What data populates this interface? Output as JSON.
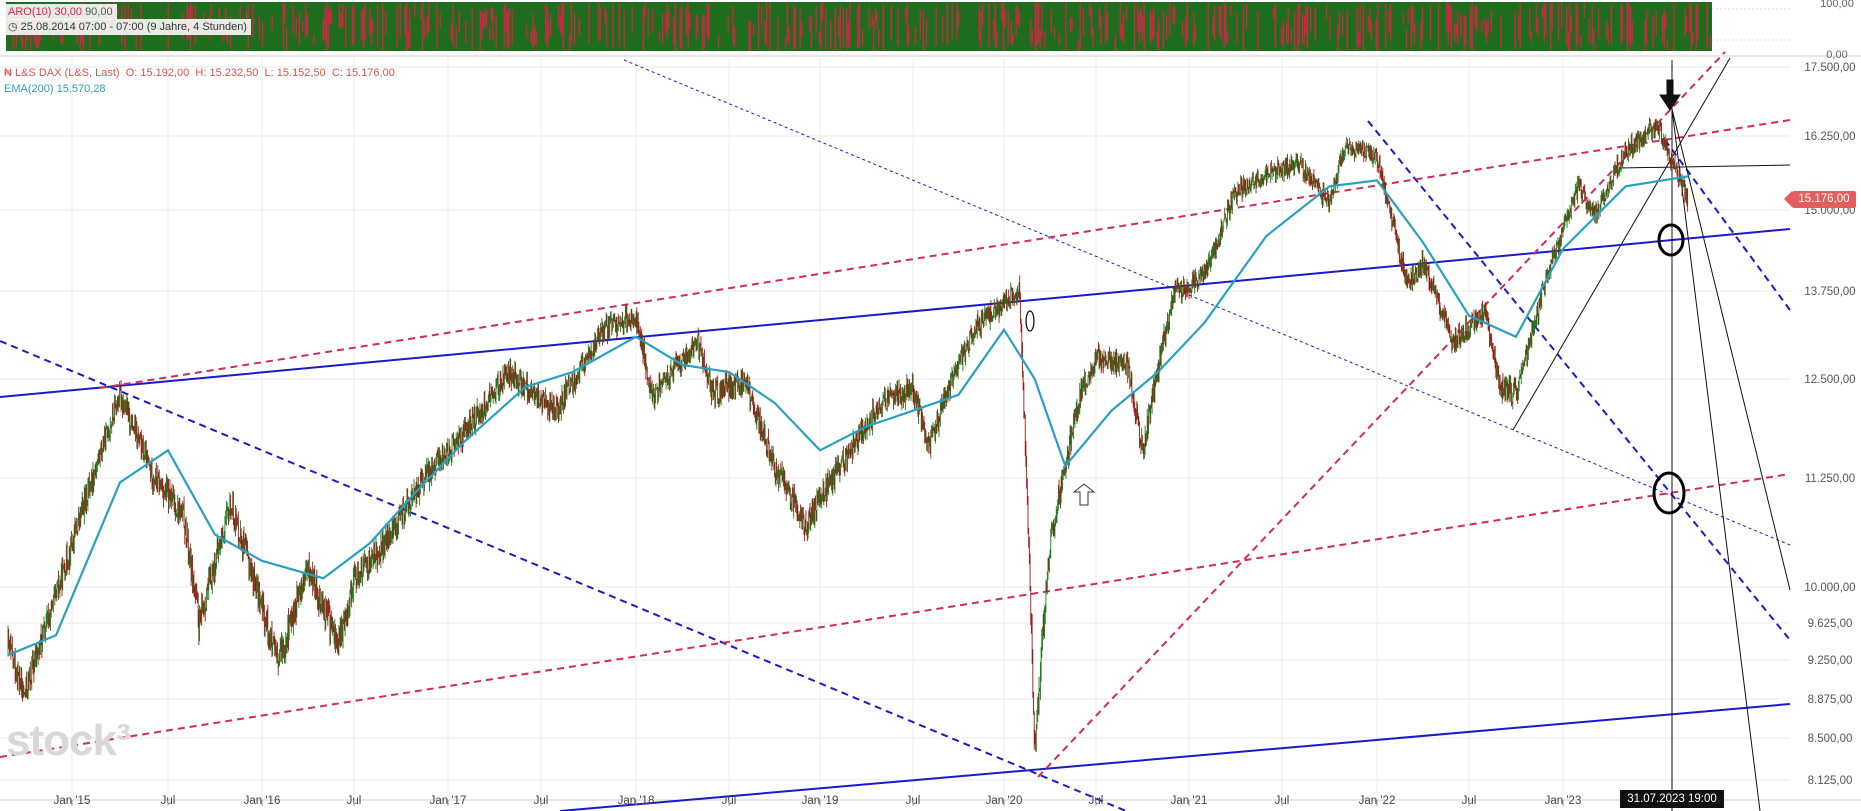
{
  "indicator_panel": {
    "aro_label": "ARO(10)",
    "aro_level1": "30,00",
    "aro_level2": "90,00",
    "range_text": "25.08.2014 07:00 - 07:00",
    "range_duration": "(9 Jahre, 4 Stunden)",
    "y_ticks": [
      "100,00",
      "0,00"
    ]
  },
  "main_legend": {
    "instrument": "L&S DAX (L&S, Last)",
    "open": "O: 15.192,00",
    "high": "H: 15.232,50",
    "low": "L: 15.152,50",
    "close": "C: 15.176,00",
    "ema_label": "EMA(200)",
    "ema_value": "15.570,28"
  },
  "current_price_tag": "15.176,00",
  "crosshair_date_tag": "31.07.2023 19:00",
  "watermark": "stock³",
  "colors": {
    "candle_up": "#1a7a1a",
    "candle_down": "#a01515",
    "ema": "#2aa0c0",
    "trend_blue": "#1a1ac8",
    "trend_red": "#d22a5a",
    "price_tag": "#e35d5d",
    "aro_green": "#1e6e1e",
    "aro_red": "#e0204a"
  },
  "chart_data": {
    "type": "line",
    "title": "L&S DAX (L&S, Last)",
    "xlabel": "",
    "ylabel": "",
    "ylim": [
      8125,
      17500
    ],
    "x_tick_labels": [
      "Jan '15",
      "Jul",
      "Jan '16",
      "Jul",
      "Jan '17",
      "Jul",
      "Jan '18",
      "Jul",
      "Jan '19",
      "Jul",
      "Jan '20",
      "Jul",
      "Jan '21",
      "Jul",
      "Jan '22",
      "Jul",
      "Jan '23"
    ],
    "y_tick_labels": [
      "17.500,00",
      "16.250,00",
      "15.000,00",
      "13.750,00",
      "12.500,00",
      "11.250,00",
      "10.000,00",
      "9.625,00",
      "9.250,00",
      "8.875,00",
      "8.500,00",
      "8.125,00"
    ],
    "y_tick_values": [
      17500,
      16250,
      15000,
      13750,
      12500,
      11250,
      10000,
      9625,
      9250,
      8875,
      8500,
      8125
    ],
    "grid": true,
    "legend": "top-left",
    "series": [
      {
        "name": "L&S DAX (L&S, Last)",
        "kind": "close-approx",
        "x": [
          "2014-09",
          "2014-10",
          "2014-12",
          "2015-03",
          "2015-04",
          "2015-06",
          "2015-08",
          "2015-09",
          "2015-11",
          "2016-02",
          "2016-04",
          "2016-06",
          "2016-07",
          "2016-09",
          "2016-12",
          "2017-02",
          "2017-05",
          "2017-06",
          "2017-08",
          "2017-11",
          "2018-01",
          "2018-02",
          "2018-05",
          "2018-06",
          "2018-08",
          "2018-10",
          "2018-12",
          "2019-03",
          "2019-05",
          "2019-07",
          "2019-08",
          "2019-11",
          "2020-02",
          "2020-03",
          "2020-04",
          "2020-06",
          "2020-07",
          "2020-09",
          "2020-10",
          "2020-12",
          "2021-02",
          "2021-04",
          "2021-06",
          "2021-08",
          "2021-10",
          "2021-11",
          "2022-01",
          "2022-03",
          "2022-04",
          "2022-06",
          "2022-08",
          "2022-09",
          "2022-10",
          "2022-12",
          "2023-02",
          "2023-03",
          "2023-05",
          "2023-07",
          "2023-08",
          "2023-09"
        ],
        "values": [
          9400,
          8900,
          9900,
          11700,
          12300,
          11300,
          10800,
          9600,
          10950,
          9200,
          10200,
          9400,
          10100,
          10500,
          11400,
          11800,
          12600,
          12400,
          12100,
          13200,
          13400,
          12300,
          13000,
          12300,
          12500,
          11400,
          10700,
          11600,
          12200,
          12400,
          11650,
          13200,
          13750,
          8400,
          10500,
          12300,
          12800,
          12700,
          11600,
          13700,
          14000,
          15300,
          15600,
          15800,
          15100,
          16100,
          15900,
          13800,
          14200,
          13000,
          13500,
          12400,
          12300,
          14000,
          15400,
          14900,
          16000,
          16450,
          15800,
          15176
        ]
      },
      {
        "name": "EMA(200)",
        "x": [
          "2014-09",
          "2014-12",
          "2015-04",
          "2015-07",
          "2015-10",
          "2016-01",
          "2016-05",
          "2016-08",
          "2016-11",
          "2017-02",
          "2017-06",
          "2017-09",
          "2018-01",
          "2018-04",
          "2018-07",
          "2018-10",
          "2019-01",
          "2019-04",
          "2019-07",
          "2019-10",
          "2020-01",
          "2020-03",
          "2020-05",
          "2020-08",
          "2020-11",
          "2021-02",
          "2021-06",
          "2021-10",
          "2022-01",
          "2022-04",
          "2022-07",
          "2022-10",
          "2023-01",
          "2023-05",
          "2023-09"
        ],
        "values": [
          9300,
          9500,
          11200,
          11600,
          10600,
          10300,
          10100,
          10500,
          11100,
          11700,
          12400,
          12600,
          13100,
          12700,
          12600,
          12200,
          11600,
          11900,
          12100,
          12300,
          13200,
          12500,
          11400,
          12100,
          12600,
          13300,
          14600,
          15400,
          15500,
          14500,
          13400,
          13100,
          14400,
          15400,
          15570
        ]
      }
    ],
    "aro_y_ticks": [
      "100,00",
      "0,00"
    ]
  }
}
